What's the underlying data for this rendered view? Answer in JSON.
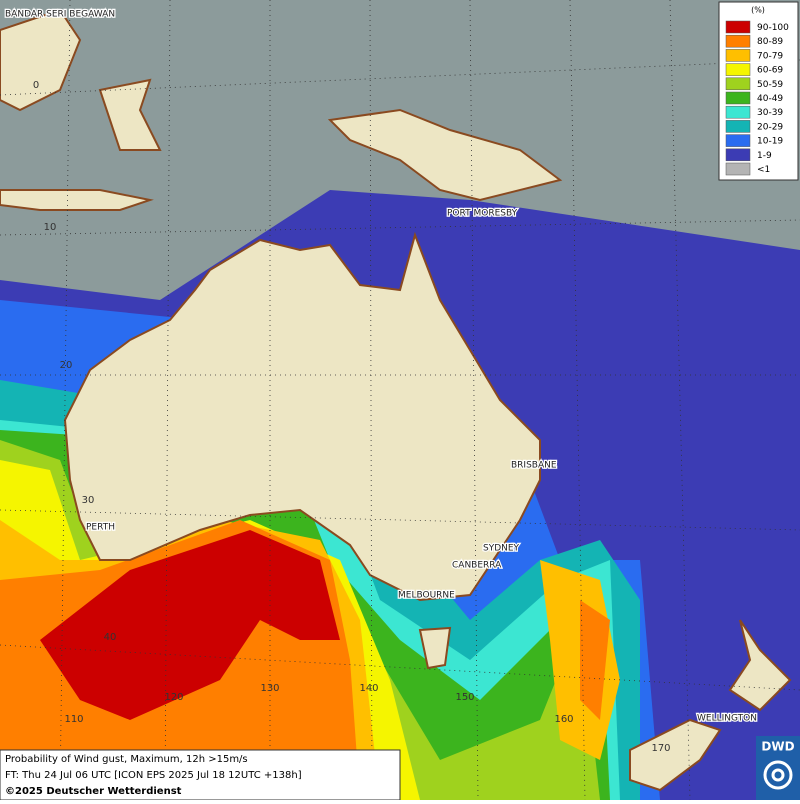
{
  "legend": {
    "title": "(%)",
    "items": [
      {
        "label": "90-100",
        "color": "#cc0000"
      },
      {
        "label": "80-89",
        "color": "#ff7f00"
      },
      {
        "label": "70-79",
        "color": "#ffbf00"
      },
      {
        "label": "60-69",
        "color": "#f5f500"
      },
      {
        "label": "50-59",
        "color": "#9fd21e"
      },
      {
        "label": "40-49",
        "color": "#3cb41e"
      },
      {
        "label": "30-39",
        "color": "#3ce6d2"
      },
      {
        "label": "20-29",
        "color": "#14b4b4"
      },
      {
        "label": "10-19",
        "color": "#2a6cf0"
      },
      {
        "label": "1-9",
        "color": "#3c3cb4"
      },
      {
        "label": "<1",
        "color": "#b4b4b4"
      }
    ]
  },
  "cities": [
    "BANDAR SERI BEGAWAN",
    "PORT MORESBY",
    "BRISBANE",
    "SYDNEY",
    "CANBERRA",
    "MELBOURNE",
    "PERTH",
    "WELLINGTON"
  ],
  "grid_labels": [
    "0",
    "10",
    "20",
    "30",
    "40",
    "110",
    "120",
    "130",
    "140",
    "150",
    "160",
    "170"
  ],
  "footer": {
    "title": "Probability of Wind gust, Maximum, 12h >15m/s",
    "forecast": "FT: Thu 24 Jul 06 UTC [ICON EPS 2025 Jul 18 12UTC +138h]",
    "copyright": "©2025 Deutscher Wetterdienst"
  },
  "logo": "DWD"
}
